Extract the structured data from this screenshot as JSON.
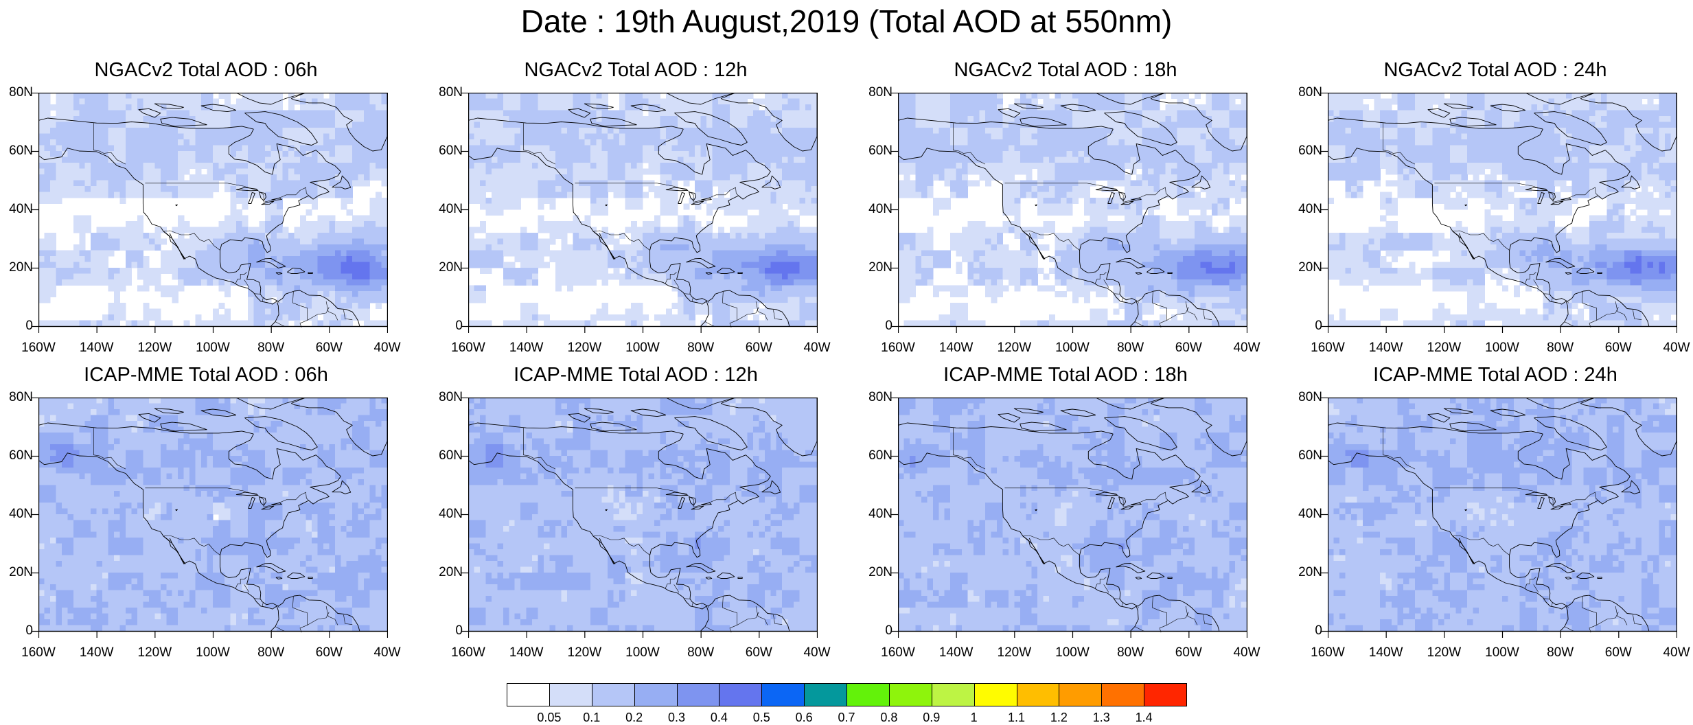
{
  "title": "Date : 19th August,2019 (Total AOD at 550nm)",
  "lat_labels": [
    "80N",
    "60N",
    "40N",
    "20N",
    "0"
  ],
  "lon_labels": [
    "160W",
    "140W",
    "120W",
    "100W",
    "80W",
    "60W",
    "40W"
  ],
  "panels": [
    {
      "title": "NGACv2 Total AOD : 06h",
      "model": "NGACv2",
      "hour": "06h"
    },
    {
      "title": "NGACv2 Total AOD : 12h",
      "model": "NGACv2",
      "hour": "12h"
    },
    {
      "title": "NGACv2 Total AOD : 18h",
      "model": "NGACv2",
      "hour": "18h"
    },
    {
      "title": "NGACv2 Total AOD : 24h",
      "model": "NGACv2",
      "hour": "24h"
    },
    {
      "title": "ICAP-MME Total AOD : 06h",
      "model": "ICAP-MME",
      "hour": "06h"
    },
    {
      "title": "ICAP-MME Total AOD : 12h",
      "model": "ICAP-MME",
      "hour": "12h"
    },
    {
      "title": "ICAP-MME Total AOD : 18h",
      "model": "ICAP-MME",
      "hour": "18h"
    },
    {
      "title": "ICAP-MME Total AOD : 24h",
      "model": "ICAP-MME",
      "hour": "24h"
    }
  ],
  "map_extent": {
    "lon_min": -160,
    "lon_max": -40,
    "lat_min": 0,
    "lat_max": 80
  },
  "colorbar": {
    "colors": [
      "#ffffff",
      "#d4def9",
      "#b5c6f7",
      "#97aef3",
      "#7e94f0",
      "#6475ee",
      "#0b66f5",
      "#04989c",
      "#63f20a",
      "#8ef40c",
      "#bdf444",
      "#fffc00",
      "#ffbe00",
      "#ff9c00",
      "#ff7100",
      "#ff2600"
    ],
    "labels": [
      "0.05",
      "0.1",
      "0.2",
      "0.3",
      "0.4",
      "0.5",
      "0.6",
      "0.7",
      "0.8",
      "0.9",
      "1",
      "1.1",
      "1.2",
      "1.3",
      "1.4"
    ]
  }
}
